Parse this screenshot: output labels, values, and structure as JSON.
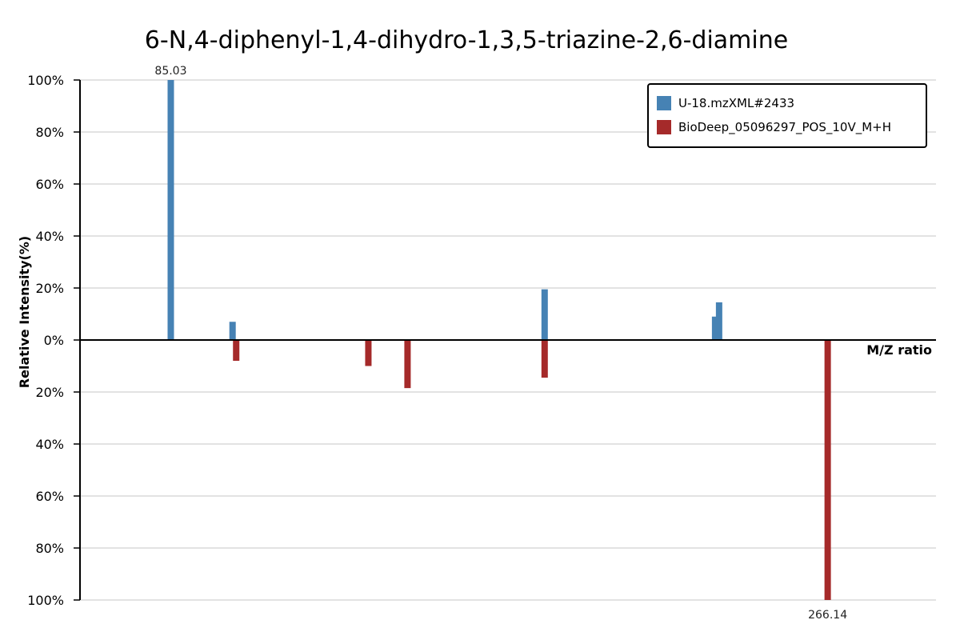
{
  "chart_data": {
    "type": "bar",
    "subtype": "mirrored-mass-spectrum",
    "title": "6-N,4-diphenyl-1,4-dihydro-1,3,5-triazine-2,6-diamine",
    "xlabel": "M/Z ratio",
    "ylabel": "Relative Intensity(%)",
    "ylim": [
      -100,
      100
    ],
    "xlim": [
      60,
      296
    ],
    "y_ticks": [
      {
        "value": 100,
        "label": "100%"
      },
      {
        "value": 80,
        "label": "80%"
      },
      {
        "value": 60,
        "label": "60%"
      },
      {
        "value": 40,
        "label": "40%"
      },
      {
        "value": 20,
        "label": "20%"
      },
      {
        "value": 0,
        "label": "0%"
      },
      {
        "value": -20,
        "label": "20%"
      },
      {
        "value": -40,
        "label": "40%"
      },
      {
        "value": -60,
        "label": "60%"
      },
      {
        "value": -80,
        "label": "80%"
      },
      {
        "value": -100,
        "label": "100%"
      }
    ],
    "grid": true,
    "legend_position": "top-right",
    "series": [
      {
        "name": "U-18.mzXML#2433",
        "color": "#4682B4",
        "direction": "up",
        "points": [
          {
            "mz": 85.03,
            "intensity": 100
          },
          {
            "mz": 102.06,
            "intensity": 7
          },
          {
            "mz": 188.1,
            "intensity": 19.5
          },
          {
            "mz": 235.1,
            "intensity": 9
          },
          {
            "mz": 236.2,
            "intensity": 14.5
          }
        ]
      },
      {
        "name": "BioDeep_05096297_POS_10V_M+H",
        "color": "#A52A2A",
        "direction": "down",
        "points": [
          {
            "mz": 103.06,
            "intensity": 8
          },
          {
            "mz": 139.5,
            "intensity": 10
          },
          {
            "mz": 150.3,
            "intensity": 18.5
          },
          {
            "mz": 188.1,
            "intensity": 14.5
          },
          {
            "mz": 266.14,
            "intensity": 100
          }
        ]
      }
    ],
    "peak_labels": [
      {
        "text": "85.03",
        "series": 0,
        "point": 0
      },
      {
        "text": "266.14",
        "series": 1,
        "point": 4
      }
    ]
  }
}
